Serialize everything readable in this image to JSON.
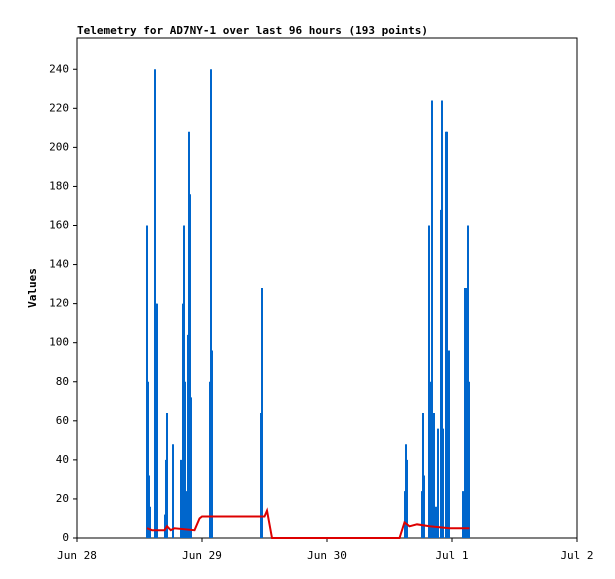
{
  "chart_data": {
    "type": "line",
    "title": "Telemetry for AD7NY-1 over last 96 hours (193 points)",
    "ylabel": "Values",
    "xlim": [
      0,
      4
    ],
    "xticks": [
      {
        "value": 0,
        "label": "Jun 28"
      },
      {
        "value": 1,
        "label": "Jun 29"
      },
      {
        "value": 2,
        "label": "Jun 30"
      },
      {
        "value": 3,
        "label": "Jul 1"
      },
      {
        "value": 4,
        "label": "Jul 2"
      }
    ],
    "ylim": [
      0,
      256
    ],
    "yticks": [
      0,
      20,
      40,
      60,
      80,
      100,
      120,
      140,
      160,
      180,
      200,
      220,
      240
    ],
    "series": [
      {
        "kind": "impulse",
        "color": "#0066cc",
        "x": [
          0.56,
          0.568,
          0.576,
          0.584,
          0.624,
          0.632,
          0.64,
          0.704,
          0.712,
          0.72,
          0.768,
          0.832,
          0.848,
          0.856,
          0.864,
          0.88,
          0.888,
          0.896,
          0.904,
          0.912,
          1.064,
          1.072,
          1.08,
          1.472,
          1.48,
          2.624,
          2.632,
          2.64,
          2.76,
          2.768,
          2.776,
          2.816,
          2.832,
          2.84,
          2.856,
          2.872,
          2.888,
          2.912,
          2.92,
          2.928,
          2.952,
          2.96,
          2.976,
          3.088,
          3.104,
          3.112,
          3.12,
          3.128,
          3.136
        ],
        "values": [
          160,
          80,
          32,
          16,
          240,
          120,
          120,
          12,
          40,
          64,
          48,
          40,
          120,
          160,
          80,
          24,
          104,
          208,
          176,
          72,
          80,
          240,
          96,
          64,
          128,
          24,
          48,
          40,
          24,
          64,
          32,
          160,
          80,
          224,
          64,
          16,
          56,
          168,
          224,
          56,
          208,
          208,
          96,
          24,
          128,
          96,
          128,
          160,
          80
        ]
      },
      {
        "kind": "line",
        "color": "#dd0000",
        "x": [
          0.56,
          0.6,
          0.7,
          0.72,
          0.75,
          0.78,
          0.94,
          0.98,
          1.0,
          1.1,
          1.5,
          1.52,
          1.56,
          2.58,
          2.62,
          2.66,
          2.72,
          2.82,
          2.98,
          3.14
        ],
        "values": [
          5,
          4,
          4,
          6,
          4,
          5,
          4,
          10,
          11,
          11,
          11,
          14,
          0,
          0,
          8,
          6,
          7,
          6,
          5,
          5
        ]
      }
    ]
  }
}
